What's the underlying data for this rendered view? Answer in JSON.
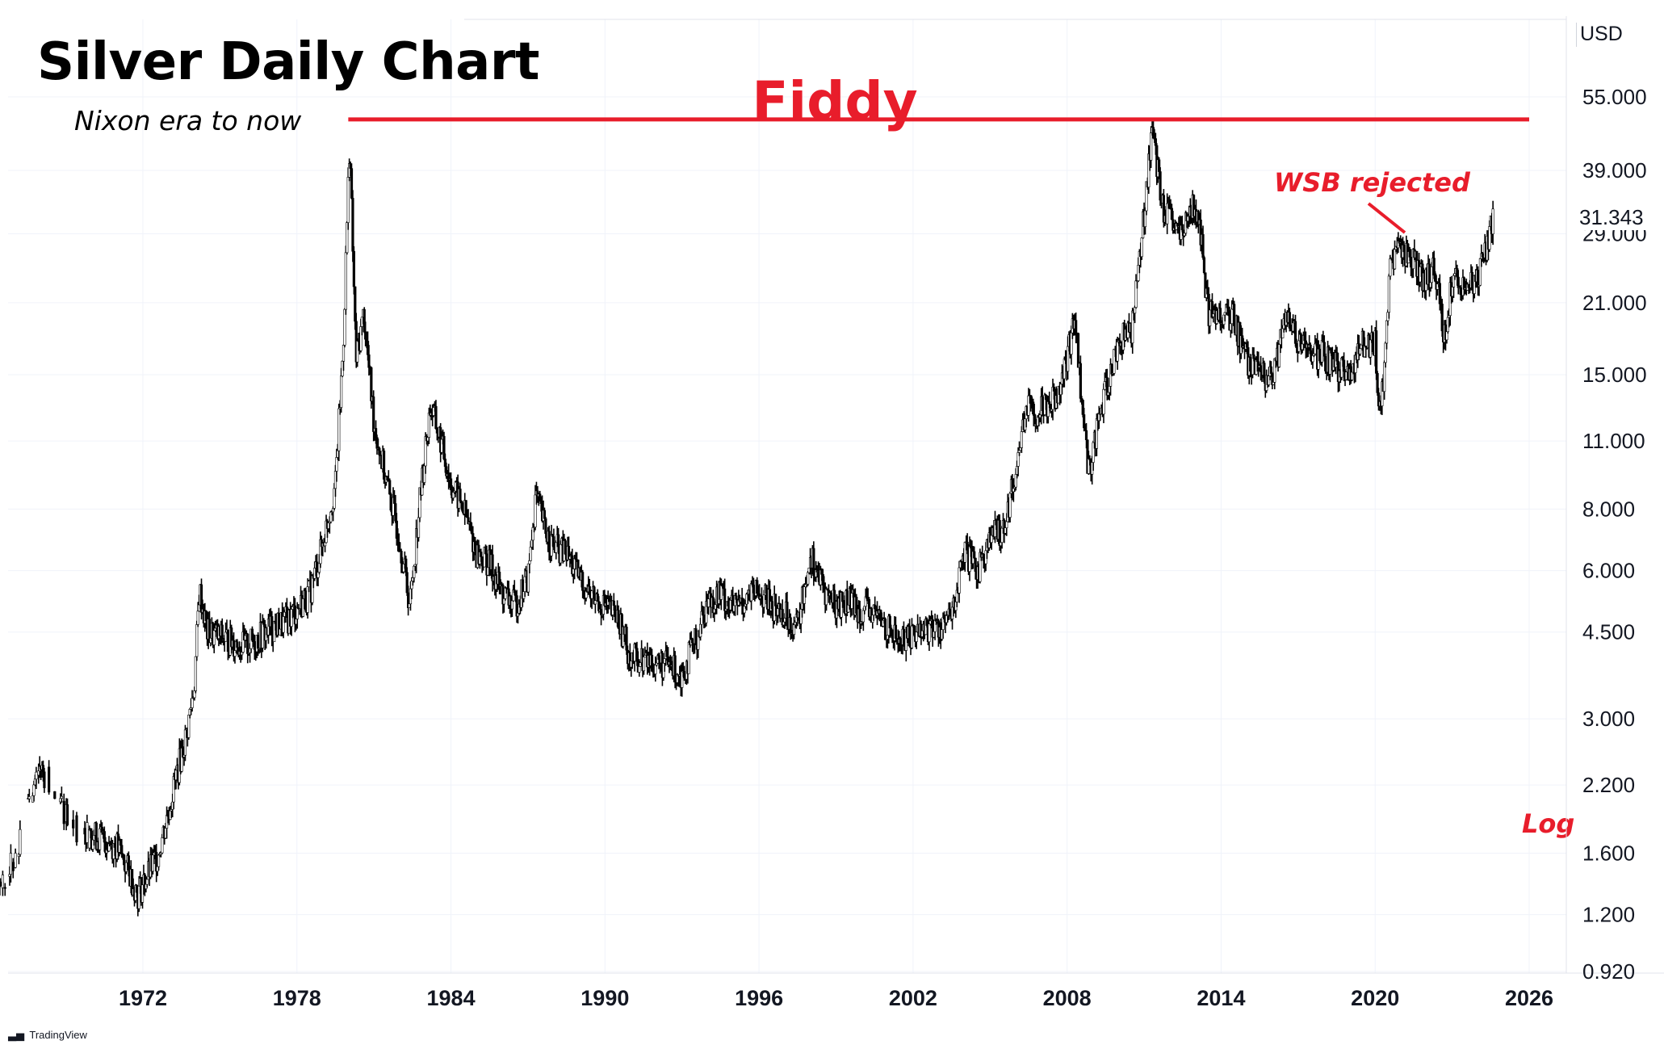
{
  "title": "Silver Daily Chart",
  "subtitle": "Nixon era to now",
  "currency_label": "USD",
  "last_price_label": "31.343",
  "brand_label": "TradingView",
  "annotations": {
    "resistance_label": "Fiddy",
    "wsb_label": "WSB rejected",
    "scale_label": "Log"
  },
  "colors": {
    "accent_red": "#e81d2b",
    "candle": "#000000",
    "grid": "#f0f3fa",
    "axis_text": "#131722"
  },
  "chart_data": {
    "type": "candlestick",
    "scale": "log",
    "grid": true,
    "x_tick_labels": [
      "1972",
      "1978",
      "1984",
      "1990",
      "1996",
      "2002",
      "2008",
      "2014",
      "2020",
      "2026"
    ],
    "y_tick_labels": [
      "55.000",
      "39.000",
      "29.000",
      "21.000",
      "15.000",
      "11.000",
      "8.000",
      "6.000",
      "4.500",
      "3.000",
      "2.200",
      "1.600",
      "1.200",
      "0.920"
    ],
    "resistance_level": 49.5,
    "last_price": 31.343,
    "series": [
      {
        "points": [
          [
            1966.0,
            1.29
          ],
          [
            1967.0,
            1.55
          ],
          [
            1967.5,
            2.05
          ],
          [
            1968.0,
            2.4
          ],
          [
            1968.5,
            2.15
          ],
          [
            1969.0,
            1.9
          ],
          [
            1969.5,
            1.78
          ],
          [
            1970.0,
            1.75
          ],
          [
            1970.5,
            1.7
          ],
          [
            1971.0,
            1.65
          ],
          [
            1971.5,
            1.45
          ],
          [
            1971.8,
            1.32
          ],
          [
            1972.2,
            1.45
          ],
          [
            1972.6,
            1.6
          ],
          [
            1973.0,
            1.95
          ],
          [
            1973.3,
            2.3
          ],
          [
            1973.7,
            2.8
          ],
          [
            1974.0,
            3.5
          ],
          [
            1974.2,
            5.5
          ],
          [
            1974.5,
            4.5
          ],
          [
            1975.0,
            4.4
          ],
          [
            1975.5,
            4.3
          ],
          [
            1976.0,
            4.2
          ],
          [
            1976.5,
            4.4
          ],
          [
            1977.0,
            4.6
          ],
          [
            1977.5,
            4.7
          ],
          [
            1978.0,
            5.0
          ],
          [
            1978.5,
            5.4
          ],
          [
            1979.0,
            6.8
          ],
          [
            1979.5,
            9.0
          ],
          [
            1979.8,
            17.0
          ],
          [
            1980.05,
            45.0
          ],
          [
            1980.3,
            16.0
          ],
          [
            1980.6,
            20.0
          ],
          [
            1981.0,
            12.0
          ],
          [
            1981.5,
            9.0
          ],
          [
            1982.0,
            7.0
          ],
          [
            1982.4,
            5.1
          ],
          [
            1982.8,
            8.5
          ],
          [
            1983.2,
            13.0
          ],
          [
            1983.6,
            11.0
          ],
          [
            1984.0,
            9.0
          ],
          [
            1984.5,
            8.0
          ],
          [
            1985.0,
            6.5
          ],
          [
            1985.5,
            6.2
          ],
          [
            1986.0,
            5.4
          ],
          [
            1986.5,
            5.1
          ],
          [
            1987.0,
            5.8
          ],
          [
            1987.3,
            8.5
          ],
          [
            1987.7,
            7.2
          ],
          [
            1988.0,
            6.7
          ],
          [
            1988.5,
            6.5
          ],
          [
            1989.0,
            5.8
          ],
          [
            1989.5,
            5.3
          ],
          [
            1990.0,
            5.1
          ],
          [
            1990.5,
            4.8
          ],
          [
            1991.0,
            4.0
          ],
          [
            1991.5,
            3.95
          ],
          [
            1992.0,
            3.9
          ],
          [
            1992.5,
            3.85
          ],
          [
            1993.0,
            3.7
          ],
          [
            1993.5,
            4.3
          ],
          [
            1994.0,
            5.2
          ],
          [
            1994.5,
            5.4
          ],
          [
            1995.0,
            5.0
          ],
          [
            1995.5,
            5.3
          ],
          [
            1996.0,
            5.4
          ],
          [
            1996.5,
            5.1
          ],
          [
            1997.0,
            4.9
          ],
          [
            1997.5,
            4.6
          ],
          [
            1998.0,
            6.5
          ],
          [
            1998.5,
            5.5
          ],
          [
            1999.0,
            5.1
          ],
          [
            1999.5,
            5.2
          ],
          [
            2000.0,
            5.0
          ],
          [
            2000.5,
            4.9
          ],
          [
            2001.0,
            4.6
          ],
          [
            2001.5,
            4.3
          ],
          [
            2002.0,
            4.5
          ],
          [
            2002.5,
            4.6
          ],
          [
            2003.0,
            4.6
          ],
          [
            2003.5,
            4.8
          ],
          [
            2004.0,
            6.5
          ],
          [
            2004.5,
            6.0
          ],
          [
            2005.0,
            7.0
          ],
          [
            2005.5,
            7.3
          ],
          [
            2006.0,
            9.5
          ],
          [
            2006.4,
            13.0
          ],
          [
            2006.8,
            12.5
          ],
          [
            2007.0,
            13.0
          ],
          [
            2007.5,
            13.5
          ],
          [
            2008.0,
            16.0
          ],
          [
            2008.3,
            20.0
          ],
          [
            2008.6,
            12.5
          ],
          [
            2008.85,
            9.5
          ],
          [
            2009.2,
            12.0
          ],
          [
            2009.6,
            14.5
          ],
          [
            2010.0,
            17.5
          ],
          [
            2010.5,
            18.5
          ],
          [
            2010.9,
            28.0
          ],
          [
            2011.3,
            48.0
          ],
          [
            2011.7,
            33.0
          ],
          [
            2012.0,
            31.0
          ],
          [
            2012.5,
            28.0
          ],
          [
            2012.8,
            34.0
          ],
          [
            2013.2,
            29.0
          ],
          [
            2013.5,
            20.0
          ],
          [
            2014.0,
            20.0
          ],
          [
            2014.5,
            19.5
          ],
          [
            2015.0,
            16.0
          ],
          [
            2015.5,
            15.0
          ],
          [
            2016.0,
            14.5
          ],
          [
            2016.5,
            19.5
          ],
          [
            2017.0,
            17.5
          ],
          [
            2017.5,
            16.5
          ],
          [
            2018.0,
            16.5
          ],
          [
            2018.5,
            15.5
          ],
          [
            2019.0,
            15.0
          ],
          [
            2019.5,
            17.5
          ],
          [
            2020.0,
            17.5
          ],
          [
            2020.2,
            12.0
          ],
          [
            2020.6,
            25.0
          ],
          [
            2021.0,
            27.0
          ],
          [
            2021.5,
            26.0
          ],
          [
            2022.0,
            23.0
          ],
          [
            2022.3,
            25.5
          ],
          [
            2022.7,
            18.0
          ],
          [
            2023.0,
            23.5
          ],
          [
            2023.5,
            23.0
          ],
          [
            2024.0,
            23.0
          ],
          [
            2024.3,
            27.0
          ],
          [
            2024.6,
            31.343
          ]
        ]
      }
    ]
  }
}
